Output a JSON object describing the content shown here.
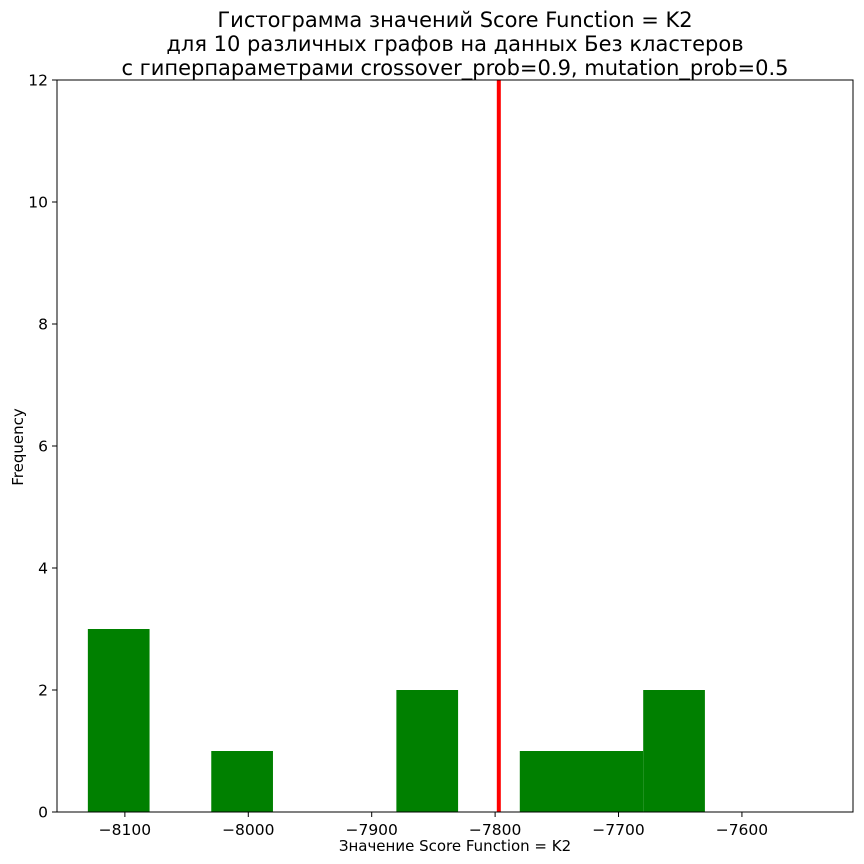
{
  "chart_data": {
    "type": "bar",
    "title_lines": [
      "Гистограмма значений Score Function = K2",
      "для 10 различных графов на данных Без кластеров",
      "с гиперпараметрами crossover_prob=0.9, mutation_prob=0.5"
    ],
    "xlabel": "Значение Score Function = K2",
    "ylabel": "Frequency",
    "xlim": [
      -8155,
      -7510
    ],
    "ylim": [
      0,
      12
    ],
    "x_ticks": [
      -8100,
      -8000,
      -7900,
      -7800,
      -7700,
      -7600
    ],
    "x_tick_labels": [
      "−8100",
      "−8000",
      "−7900",
      "−7800",
      "−7700",
      "−7600"
    ],
    "y_ticks": [
      0,
      2,
      4,
      6,
      8,
      10,
      12
    ],
    "y_tick_labels": [
      "0",
      "2",
      "4",
      "6",
      "8",
      "10",
      "12"
    ],
    "bins": [
      {
        "start": -8130,
        "end": -8080,
        "count": 3
      },
      {
        "start": -8080,
        "end": -8030,
        "count": 0
      },
      {
        "start": -8030,
        "end": -7980,
        "count": 1
      },
      {
        "start": -7980,
        "end": -7930,
        "count": 0
      },
      {
        "start": -7930,
        "end": -7880,
        "count": 0
      },
      {
        "start": -7880,
        "end": -7830,
        "count": 2
      },
      {
        "start": -7830,
        "end": -7780,
        "count": 0
      },
      {
        "start": -7780,
        "end": -7730,
        "count": 1
      },
      {
        "start": -7730,
        "end": -7680,
        "count": 1
      },
      {
        "start": -7680,
        "end": -7630,
        "count": 2
      }
    ],
    "bar_color": "#008000",
    "reference_line": {
      "x": -7797,
      "color": "#ff0000"
    },
    "grid": false,
    "legend": false
  }
}
